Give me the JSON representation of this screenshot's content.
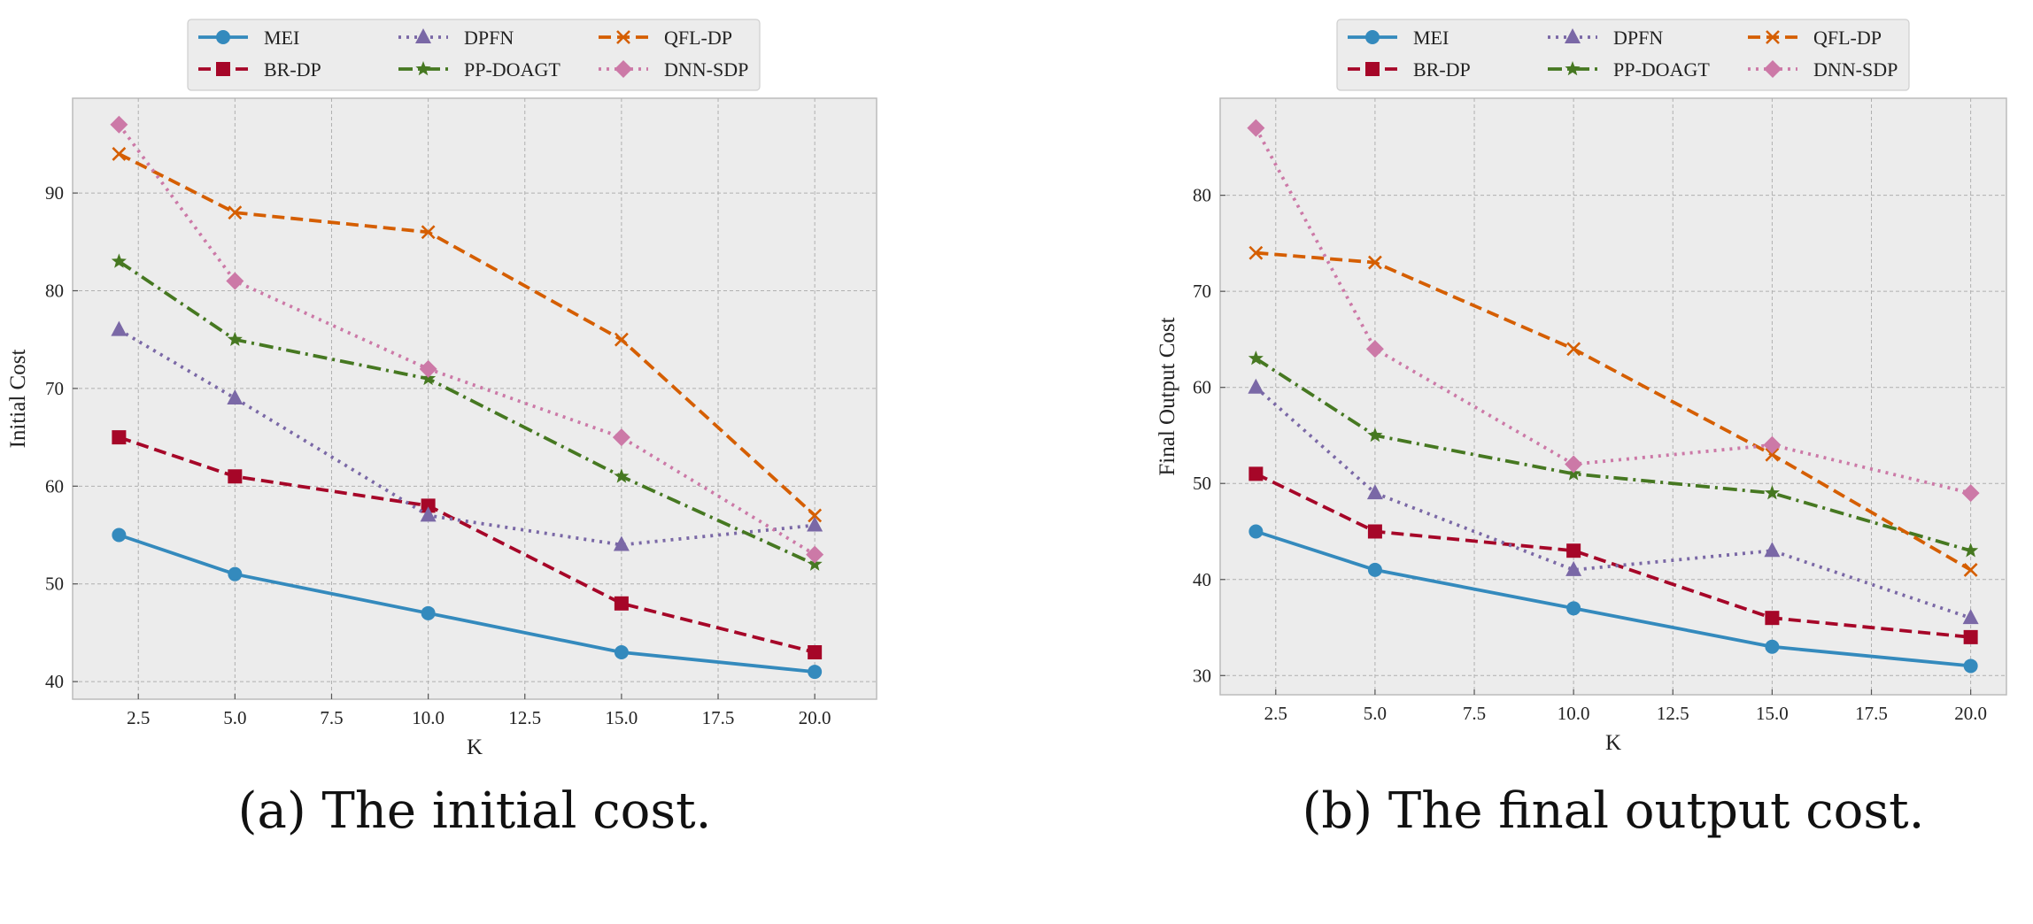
{
  "legend": [
    {
      "name": "MEI",
      "color": "#348ABD",
      "dash": "solid",
      "marker": "circle"
    },
    {
      "name": "BR-DP",
      "color": "#A60628",
      "dash": "dashed",
      "marker": "square"
    },
    {
      "name": "DPFN",
      "color": "#7A68A6",
      "dash": "dotted",
      "marker": "triangle"
    },
    {
      "name": "PP-DOAGT",
      "color": "#467821",
      "dash": "dashdot",
      "marker": "star"
    },
    {
      "name": "QFL-DP",
      "color": "#D55E00",
      "dash": "dashed",
      "marker": "x"
    },
    {
      "name": "DNN-SDP",
      "color": "#CC79A7",
      "dash": "dotted",
      "marker": "diamond"
    }
  ],
  "chart_data": [
    {
      "type": "line",
      "caption": "(a) The initial cost.",
      "xlabel": "K",
      "ylabel": "Initial Cost",
      "x": [
        2,
        5,
        10,
        15,
        20
      ],
      "xlim": [
        0.8,
        21.6
      ],
      "ylim": [
        38.2,
        99.7
      ],
      "xticks": [
        "2.5",
        "5.0",
        "7.5",
        "10.0",
        "12.5",
        "15.0",
        "17.5",
        "20.0"
      ],
      "yticks": [
        "40",
        "50",
        "60",
        "70",
        "80",
        "90"
      ],
      "grid": true,
      "legend_position": "top-center, above plot",
      "series": [
        {
          "name": "MEI",
          "values": [
            55,
            51,
            47,
            43,
            41
          ]
        },
        {
          "name": "BR-DP",
          "values": [
            65,
            61,
            58,
            48,
            43
          ]
        },
        {
          "name": "DPFN",
          "values": [
            76,
            69,
            57,
            54,
            56
          ]
        },
        {
          "name": "PP-DOAGT",
          "values": [
            83,
            75,
            71,
            61,
            52
          ]
        },
        {
          "name": "QFL-DP",
          "values": [
            94,
            88,
            86,
            75,
            57
          ]
        },
        {
          "name": "DNN-SDP",
          "values": [
            97,
            81,
            72,
            65,
            53
          ]
        }
      ]
    },
    {
      "type": "line",
      "caption": "(b) The final output cost.",
      "xlabel": "K",
      "ylabel": "Final Output Cost",
      "x": [
        2,
        5,
        10,
        15,
        20
      ],
      "xlim": [
        1.1,
        20.9
      ],
      "ylim": [
        28.0,
        90.1
      ],
      "xticks": [
        "2.5",
        "5.0",
        "7.5",
        "10.0",
        "12.5",
        "15.0",
        "17.5",
        "20.0"
      ],
      "yticks": [
        "30",
        "40",
        "50",
        "60",
        "70",
        "80"
      ],
      "grid": true,
      "legend_position": "top-center, above plot",
      "series": [
        {
          "name": "MEI",
          "values": [
            45,
            41,
            37,
            33,
            31
          ]
        },
        {
          "name": "BR-DP",
          "values": [
            51,
            45,
            43,
            36,
            34
          ]
        },
        {
          "name": "DPFN",
          "values": [
            60,
            49,
            41,
            43,
            36
          ]
        },
        {
          "name": "PP-DOAGT",
          "values": [
            63,
            55,
            51,
            49,
            43
          ]
        },
        {
          "name": "QFL-DP",
          "values": [
            74,
            73,
            64,
            53,
            41
          ]
        },
        {
          "name": "DNN-SDP",
          "values": [
            87,
            64,
            52,
            54,
            49
          ]
        }
      ]
    }
  ]
}
